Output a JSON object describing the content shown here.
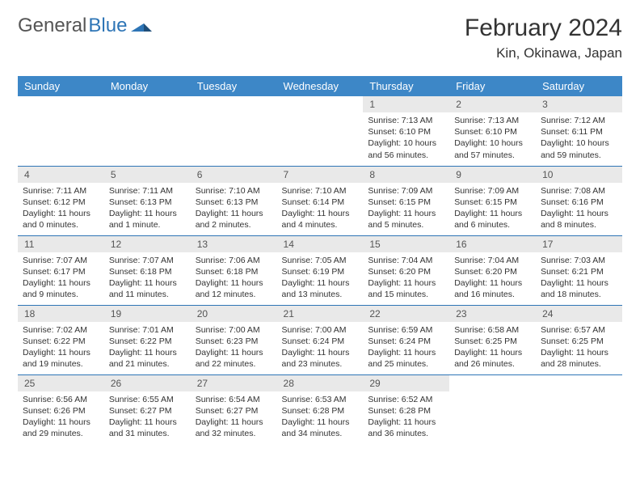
{
  "brand": {
    "part1": "General",
    "part2": "Blue"
  },
  "title": "February 2024",
  "location": "Kin, Okinawa, Japan",
  "colors": {
    "header_bg": "#3d87c7",
    "header_text": "#ffffff",
    "daynum_bg": "#e9e9e9",
    "row_divider": "#2e75b6",
    "brand_blue": "#2e75b6",
    "text": "#333333"
  },
  "weekdays": [
    "Sunday",
    "Monday",
    "Tuesday",
    "Wednesday",
    "Thursday",
    "Friday",
    "Saturday"
  ],
  "weeks": [
    [
      {
        "day": "",
        "sunrise": "",
        "sunset": "",
        "daylight": ""
      },
      {
        "day": "",
        "sunrise": "",
        "sunset": "",
        "daylight": ""
      },
      {
        "day": "",
        "sunrise": "",
        "sunset": "",
        "daylight": ""
      },
      {
        "day": "",
        "sunrise": "",
        "sunset": "",
        "daylight": ""
      },
      {
        "day": "1",
        "sunrise": "Sunrise: 7:13 AM",
        "sunset": "Sunset: 6:10 PM",
        "daylight": "Daylight: 10 hours and 56 minutes."
      },
      {
        "day": "2",
        "sunrise": "Sunrise: 7:13 AM",
        "sunset": "Sunset: 6:10 PM",
        "daylight": "Daylight: 10 hours and 57 minutes."
      },
      {
        "day": "3",
        "sunrise": "Sunrise: 7:12 AM",
        "sunset": "Sunset: 6:11 PM",
        "daylight": "Daylight: 10 hours and 59 minutes."
      }
    ],
    [
      {
        "day": "4",
        "sunrise": "Sunrise: 7:11 AM",
        "sunset": "Sunset: 6:12 PM",
        "daylight": "Daylight: 11 hours and 0 minutes."
      },
      {
        "day": "5",
        "sunrise": "Sunrise: 7:11 AM",
        "sunset": "Sunset: 6:13 PM",
        "daylight": "Daylight: 11 hours and 1 minute."
      },
      {
        "day": "6",
        "sunrise": "Sunrise: 7:10 AM",
        "sunset": "Sunset: 6:13 PM",
        "daylight": "Daylight: 11 hours and 2 minutes."
      },
      {
        "day": "7",
        "sunrise": "Sunrise: 7:10 AM",
        "sunset": "Sunset: 6:14 PM",
        "daylight": "Daylight: 11 hours and 4 minutes."
      },
      {
        "day": "8",
        "sunrise": "Sunrise: 7:09 AM",
        "sunset": "Sunset: 6:15 PM",
        "daylight": "Daylight: 11 hours and 5 minutes."
      },
      {
        "day": "9",
        "sunrise": "Sunrise: 7:09 AM",
        "sunset": "Sunset: 6:15 PM",
        "daylight": "Daylight: 11 hours and 6 minutes."
      },
      {
        "day": "10",
        "sunrise": "Sunrise: 7:08 AM",
        "sunset": "Sunset: 6:16 PM",
        "daylight": "Daylight: 11 hours and 8 minutes."
      }
    ],
    [
      {
        "day": "11",
        "sunrise": "Sunrise: 7:07 AM",
        "sunset": "Sunset: 6:17 PM",
        "daylight": "Daylight: 11 hours and 9 minutes."
      },
      {
        "day": "12",
        "sunrise": "Sunrise: 7:07 AM",
        "sunset": "Sunset: 6:18 PM",
        "daylight": "Daylight: 11 hours and 11 minutes."
      },
      {
        "day": "13",
        "sunrise": "Sunrise: 7:06 AM",
        "sunset": "Sunset: 6:18 PM",
        "daylight": "Daylight: 11 hours and 12 minutes."
      },
      {
        "day": "14",
        "sunrise": "Sunrise: 7:05 AM",
        "sunset": "Sunset: 6:19 PM",
        "daylight": "Daylight: 11 hours and 13 minutes."
      },
      {
        "day": "15",
        "sunrise": "Sunrise: 7:04 AM",
        "sunset": "Sunset: 6:20 PM",
        "daylight": "Daylight: 11 hours and 15 minutes."
      },
      {
        "day": "16",
        "sunrise": "Sunrise: 7:04 AM",
        "sunset": "Sunset: 6:20 PM",
        "daylight": "Daylight: 11 hours and 16 minutes."
      },
      {
        "day": "17",
        "sunrise": "Sunrise: 7:03 AM",
        "sunset": "Sunset: 6:21 PM",
        "daylight": "Daylight: 11 hours and 18 minutes."
      }
    ],
    [
      {
        "day": "18",
        "sunrise": "Sunrise: 7:02 AM",
        "sunset": "Sunset: 6:22 PM",
        "daylight": "Daylight: 11 hours and 19 minutes."
      },
      {
        "day": "19",
        "sunrise": "Sunrise: 7:01 AM",
        "sunset": "Sunset: 6:22 PM",
        "daylight": "Daylight: 11 hours and 21 minutes."
      },
      {
        "day": "20",
        "sunrise": "Sunrise: 7:00 AM",
        "sunset": "Sunset: 6:23 PM",
        "daylight": "Daylight: 11 hours and 22 minutes."
      },
      {
        "day": "21",
        "sunrise": "Sunrise: 7:00 AM",
        "sunset": "Sunset: 6:24 PM",
        "daylight": "Daylight: 11 hours and 23 minutes."
      },
      {
        "day": "22",
        "sunrise": "Sunrise: 6:59 AM",
        "sunset": "Sunset: 6:24 PM",
        "daylight": "Daylight: 11 hours and 25 minutes."
      },
      {
        "day": "23",
        "sunrise": "Sunrise: 6:58 AM",
        "sunset": "Sunset: 6:25 PM",
        "daylight": "Daylight: 11 hours and 26 minutes."
      },
      {
        "day": "24",
        "sunrise": "Sunrise: 6:57 AM",
        "sunset": "Sunset: 6:25 PM",
        "daylight": "Daylight: 11 hours and 28 minutes."
      }
    ],
    [
      {
        "day": "25",
        "sunrise": "Sunrise: 6:56 AM",
        "sunset": "Sunset: 6:26 PM",
        "daylight": "Daylight: 11 hours and 29 minutes."
      },
      {
        "day": "26",
        "sunrise": "Sunrise: 6:55 AM",
        "sunset": "Sunset: 6:27 PM",
        "daylight": "Daylight: 11 hours and 31 minutes."
      },
      {
        "day": "27",
        "sunrise": "Sunrise: 6:54 AM",
        "sunset": "Sunset: 6:27 PM",
        "daylight": "Daylight: 11 hours and 32 minutes."
      },
      {
        "day": "28",
        "sunrise": "Sunrise: 6:53 AM",
        "sunset": "Sunset: 6:28 PM",
        "daylight": "Daylight: 11 hours and 34 minutes."
      },
      {
        "day": "29",
        "sunrise": "Sunrise: 6:52 AM",
        "sunset": "Sunset: 6:28 PM",
        "daylight": "Daylight: 11 hours and 36 minutes."
      },
      {
        "day": "",
        "sunrise": "",
        "sunset": "",
        "daylight": ""
      },
      {
        "day": "",
        "sunrise": "",
        "sunset": "",
        "daylight": ""
      }
    ]
  ]
}
